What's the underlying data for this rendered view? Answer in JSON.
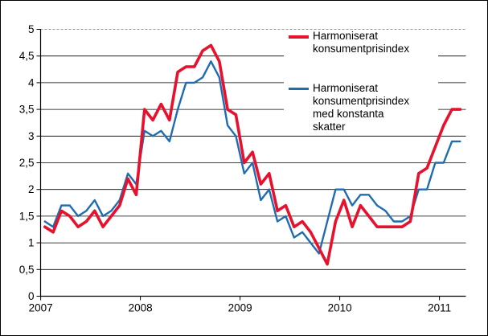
{
  "figure": {
    "background": "#ffffff",
    "border_color": "#000000"
  },
  "legend": {
    "position": "top-right",
    "items": [
      {
        "series": "hicp",
        "label": "Harmoniserat\nkonsumentprisindex",
        "color": "#e8112d",
        "swatch_thickness": 4
      },
      {
        "series": "hicp_constant_taxes",
        "label": "Harmoniserat\nkonsumentprisindex\nmed konstanta\nskatter",
        "color": "#1f6cb0",
        "swatch_thickness": 3
      }
    ]
  },
  "chart_data": {
    "type": "line",
    "title": "",
    "xlabel": "",
    "ylabel": "",
    "x_unit": "month",
    "x_start": "2007-01",
    "x_end": "2011-03",
    "months_per_year": 12,
    "x_tick_labels": [
      "2007",
      "2008",
      "2009",
      "2010",
      "2011"
    ],
    "y_tick_labels": [
      "0",
      "0,5",
      "1",
      "1,5",
      "2",
      "2,5",
      "3",
      "3,5",
      "4",
      "4,5",
      "5"
    ],
    "y_tick_values": [
      0,
      0.5,
      1,
      1.5,
      2,
      2.5,
      3,
      3.5,
      4,
      4.5,
      5
    ],
    "ylim": [
      0,
      5
    ],
    "grid": true,
    "gridline_color": "#000000",
    "top_gridline_dashed": true,
    "top_gridline_color": "#999999",
    "legend_position": "top-right",
    "series": [
      {
        "name": "Harmoniserat konsumentprisindex",
        "color": "#e8112d",
        "stroke_width": 3.6,
        "values": [
          1.3,
          1.2,
          1.6,
          1.5,
          1.3,
          1.4,
          1.6,
          1.3,
          1.5,
          1.7,
          2.2,
          1.9,
          3.5,
          3.3,
          3.6,
          3.3,
          4.2,
          4.3,
          4.3,
          4.6,
          4.7,
          4.4,
          3.5,
          3.4,
          2.5,
          2.7,
          2.1,
          2.3,
          1.6,
          1.7,
          1.3,
          1.4,
          1.2,
          0.9,
          0.6,
          1.4,
          1.8,
          1.3,
          1.7,
          1.5,
          1.3,
          1.3,
          1.3,
          1.3,
          1.4,
          2.3,
          2.4,
          2.8,
          3.2,
          3.5,
          3.5
        ]
      },
      {
        "name": "Harmoniserat konsumentprisindex med konstanta skatter",
        "color": "#1f6cb0",
        "stroke_width": 2.4,
        "values": [
          1.4,
          1.3,
          1.7,
          1.7,
          1.5,
          1.6,
          1.8,
          1.5,
          1.6,
          1.8,
          2.3,
          2.1,
          3.1,
          3.0,
          3.1,
          2.9,
          3.5,
          4.0,
          4.0,
          4.1,
          4.4,
          4.1,
          3.2,
          3.0,
          2.3,
          2.5,
          1.8,
          2.0,
          1.4,
          1.5,
          1.1,
          1.2,
          1.0,
          0.8,
          1.4,
          2.0,
          2.0,
          1.7,
          1.9,
          1.9,
          1.7,
          1.6,
          1.4,
          1.4,
          1.5,
          2.0,
          2.0,
          2.5,
          2.5,
          2.9,
          2.9
        ]
      }
    ]
  }
}
